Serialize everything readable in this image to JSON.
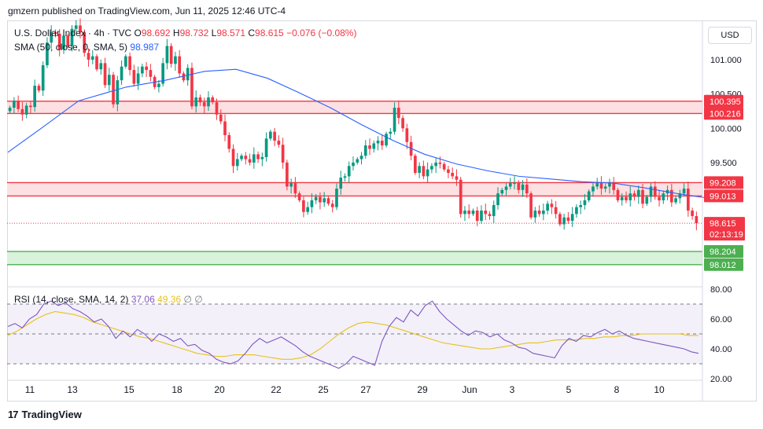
{
  "header": {
    "publisher": "gmzern published on TradingView.com, Jun 11, 2025 12:46 UTC-4"
  },
  "legend": {
    "symbol": "U.S. Dollar Index · 4h · TVC",
    "open_label": "O",
    "open": "98.692",
    "high_label": "H",
    "high": "98.732",
    "low_label": "L",
    "low": "98.571",
    "close_label": "C",
    "close": "98.615",
    "change": "−0.076 (−0.08%)",
    "sma_label": "SMA (50, close, 0, SMA, 5)",
    "sma_value": "98.987"
  },
  "rsi_legend": {
    "label": "RSI (14, close, SMA, 14, 2)",
    "rsi": "37.06",
    "rsi_sma": "49.36",
    "extra1": "∅",
    "extra2": "∅"
  },
  "currency": "USD",
  "footer": {
    "brand": "TradingView",
    "logo": "17"
  },
  "colors": {
    "up": "#089981",
    "down": "#f23645",
    "sma": "#2962ff",
    "rsi": "#7e57c2",
    "rsi_sma": "#e6c21d",
    "resistance_fill": "#fde0e2",
    "support_fill": "#d9f2dc",
    "support_line": "#4caf50"
  },
  "chart_data": {
    "type": "candlestick",
    "title": "U.S. Dollar Index",
    "ylim": [
      97.7,
      101.55
    ],
    "price_ticks": [
      "101.000",
      "100.500",
      "100.000",
      "99.500",
      "99.000"
    ],
    "x_ticks": [
      "11",
      "13",
      "15",
      "18",
      "20",
      "22",
      "25",
      "27",
      "29",
      "Jun",
      "3",
      "5",
      "8",
      "10"
    ],
    "zones": [
      {
        "kind": "resistance",
        "high": 100.395,
        "low": 100.216,
        "labels": [
          "100.395",
          "100.216"
        ]
      },
      {
        "kind": "resistance",
        "high": 99.208,
        "low": 99.013,
        "labels": [
          "99.208",
          "99.013"
        ]
      },
      {
        "kind": "support",
        "high": 98.204,
        "low": 98.012,
        "labels": [
          "98.204",
          "98.012"
        ]
      }
    ],
    "last_price": {
      "value": 98.615,
      "label": "98.615",
      "countdown": "02:13:19"
    },
    "closes": [
      100.3,
      100.4,
      100.28,
      100.2,
      100.33,
      100.31,
      100.62,
      100.55,
      100.92,
      101.25,
      101.4,
      101.38,
      101.15,
      101.35,
      101.2,
      101.45,
      101.5,
      101.4,
      101.1,
      101.0,
      101.05,
      100.86,
      100.95,
      100.63,
      100.78,
      100.35,
      100.7,
      100.9,
      101.05,
      100.85,
      100.65,
      100.8,
      100.9,
      100.85,
      100.75,
      100.6,
      100.65,
      100.95,
      101.2,
      100.94,
      101.05,
      100.8,
      100.7,
      100.88,
      100.32,
      100.45,
      100.38,
      100.32,
      100.45,
      100.38,
      100.2,
      100.1,
      99.9,
      99.7,
      99.45,
      99.55,
      99.6,
      99.55,
      99.5,
      99.62,
      99.55,
      99.58,
      99.85,
      99.95,
      99.82,
      99.76,
      99.5,
      99.15,
      99.2,
      99.05,
      98.95,
      98.78,
      98.85,
      98.95,
      99.0,
      98.92,
      98.98,
      98.9,
      98.85,
      99.12,
      99.28,
      99.3,
      99.45,
      99.5,
      99.55,
      99.6,
      99.75,
      99.7,
      99.78,
      99.82,
      99.75,
      99.92,
      99.95,
      100.3,
      100.15,
      100.0,
      99.8,
      99.6,
      99.35,
      99.45,
      99.3,
      99.4,
      99.45,
      99.5,
      99.48,
      99.4,
      99.35,
      99.3,
      99.25,
      98.75,
      98.8,
      98.75,
      98.8,
      98.65,
      98.8,
      98.75,
      98.72,
      98.88,
      99.05,
      99.1,
      99.15,
      99.2,
      99.2,
      99.1,
      99.18,
      99.05,
      98.7,
      98.8,
      98.75,
      98.8,
      98.9,
      98.85,
      98.75,
      98.6,
      98.7,
      98.65,
      98.75,
      98.85,
      98.88,
      98.95,
      99.08,
      99.15,
      99.2,
      99.12,
      99.15,
      99.2,
      99.1,
      98.95,
      99.0,
      98.95,
      99.05,
      99.0,
      99.1,
      98.9,
      99.0,
      99.15,
      99.0,
      98.95,
      99.05,
      99.1,
      98.92,
      98.98,
      99.05,
      99.12,
      98.8,
      98.72,
      98.615
    ],
    "sma50": [
      [
        0,
        99.65
      ],
      [
        40,
        99.98
      ],
      [
        90,
        100.4
      ],
      [
        150,
        100.6
      ],
      [
        200,
        100.7
      ],
      [
        250,
        100.83
      ],
      [
        290,
        100.86
      ],
      [
        330,
        100.73
      ],
      [
        370,
        100.52
      ],
      [
        410,
        100.3
      ],
      [
        450,
        100.05
      ],
      [
        490,
        99.82
      ],
      [
        530,
        99.62
      ],
      [
        570,
        99.48
      ],
      [
        610,
        99.38
      ],
      [
        650,
        99.3
      ],
      [
        690,
        99.26
      ],
      [
        730,
        99.22
      ],
      [
        770,
        99.2
      ],
      [
        810,
        99.13
      ],
      [
        850,
        99.05
      ],
      [
        885,
        98.99
      ]
    ],
    "rsi": {
      "ylim": [
        20,
        80
      ],
      "ticks": [
        "80.00",
        "60.00",
        "40.00",
        "20.00"
      ],
      "upper": 70,
      "middle": 50,
      "lower": 30,
      "rsi_values": [
        55,
        57,
        54,
        60,
        63,
        70,
        72,
        69,
        71,
        67,
        65,
        62,
        58,
        60,
        55,
        47,
        52,
        48,
        53,
        50,
        45,
        50,
        48,
        45,
        47,
        42,
        43,
        39,
        37,
        33,
        31,
        30,
        32,
        37,
        43,
        47,
        44,
        46,
        48,
        45,
        42,
        38,
        35,
        33,
        31,
        29,
        27,
        30,
        35,
        33,
        31,
        29,
        45,
        55,
        61,
        58,
        66,
        62,
        69,
        72,
        65,
        60,
        56,
        52,
        49,
        52,
        51,
        48,
        50,
        46,
        44,
        41,
        40,
        37,
        36,
        35,
        34,
        42,
        47,
        45,
        49,
        48,
        51,
        53,
        50,
        52,
        49,
        47,
        46,
        45,
        44,
        43,
        42,
        41,
        40,
        38,
        37
      ],
      "rsi_sma_values": [
        49,
        52,
        56,
        60,
        63,
        65,
        64,
        63,
        61,
        58,
        56,
        54,
        52,
        50,
        48,
        47,
        45,
        43,
        41,
        39,
        37,
        36,
        35,
        35,
        36,
        36,
        36,
        35,
        34,
        33,
        33,
        34,
        36,
        40,
        45,
        50,
        54,
        57,
        58,
        57,
        56,
        54,
        52,
        50,
        48,
        46,
        44,
        43,
        42,
        41,
        40,
        40,
        41,
        42,
        43,
        44,
        44,
        45,
        46,
        46,
        46,
        47,
        47,
        48,
        48,
        49,
        49,
        50,
        50,
        50,
        50,
        50,
        49,
        49
      ]
    }
  }
}
